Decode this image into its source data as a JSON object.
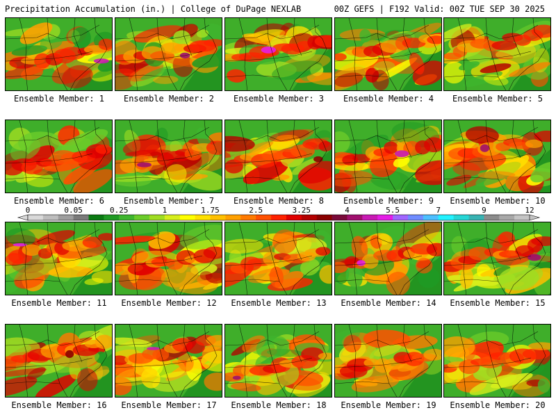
{
  "header": {
    "left": "Precipitation Accumulation (in.) | College of DuPage NEXLAB",
    "right": "00Z GEFS | F192 Valid: 00Z TUE SEP 30 2025"
  },
  "caption_prefix": "Ensemble Member: ",
  "members": [
    1,
    2,
    3,
    4,
    5,
    6,
    7,
    8,
    9,
    10,
    11,
    12,
    13,
    14,
    15,
    16,
    17,
    18,
    19,
    20
  ],
  "colorbar": {
    "labels": [
      "0",
      "0.05",
      "0.25",
      "1",
      "1.75",
      "2.5",
      "3.25",
      "4",
      "5.5",
      "7",
      "9",
      "12"
    ],
    "colors": [
      "#d9d9d9",
      "#bdbdbd",
      "#9e9e9e",
      "#7a7a7a",
      "#0a7a12",
      "#1f9a24",
      "#3fb62e",
      "#6bcc2a",
      "#9fdd22",
      "#d6ee1c",
      "#ffff00",
      "#ffe100",
      "#ffc000",
      "#ffa000",
      "#ff7a00",
      "#ff5000",
      "#ff2200",
      "#e00000",
      "#b40000",
      "#8a0000",
      "#7a0a3a",
      "#a0106e",
      "#c81ab4",
      "#e41ee6",
      "#a066ff",
      "#6f8cff",
      "#4dbfff",
      "#22f2ff",
      "#26d6d6",
      "#38b3b3",
      "#8c8c8c",
      "#a8a8a8",
      "#c4c4c4"
    ]
  }
}
